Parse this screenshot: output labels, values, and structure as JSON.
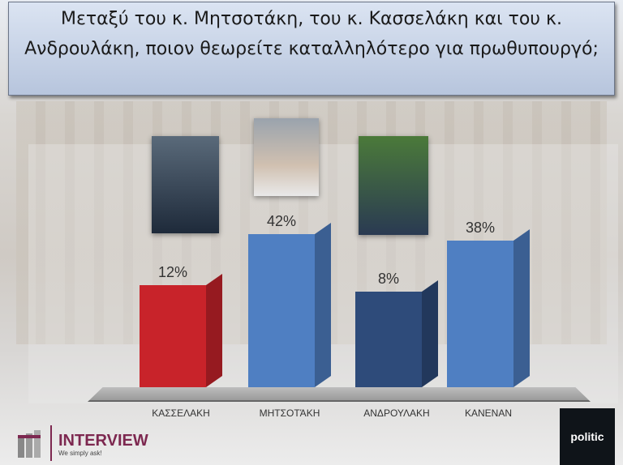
{
  "title": "Μεταξύ του κ. Μητσοτάκη, του κ. Κασσελάκη και του κ. Ανδρουλάκη, ποιον θεωρείτε καταλληλότερο για πρωθυπουργό;",
  "chart_data": {
    "type": "bar",
    "title": "Μεταξύ του κ. Μητσοτάκη, του κ. Κασσελάκη και του κ. Ανδρουλάκη, ποιον θεωρείτε καταλληλότερο για πρωθυπουργό;",
    "categories": [
      "ΚΑΣΣΕΛΑΚΗ",
      "ΜΗΤΣΟΤΆΚΗ",
      "ΑΝΔΡΟΥΛΑΚΗ",
      "ΚΑΝΕΝΑΝ"
    ],
    "values": [
      12,
      42,
      8,
      38
    ],
    "labels": [
      "12%",
      "42%",
      "8%",
      "38%"
    ],
    "colors": [
      "#c8232a",
      "#4f7fc2",
      "#2e4b7a",
      "#4f7fc2"
    ],
    "unit": "%"
  },
  "branding": {
    "interview": "INTERVIEW",
    "tagline": "We simply ask!",
    "politic": "politic"
  }
}
